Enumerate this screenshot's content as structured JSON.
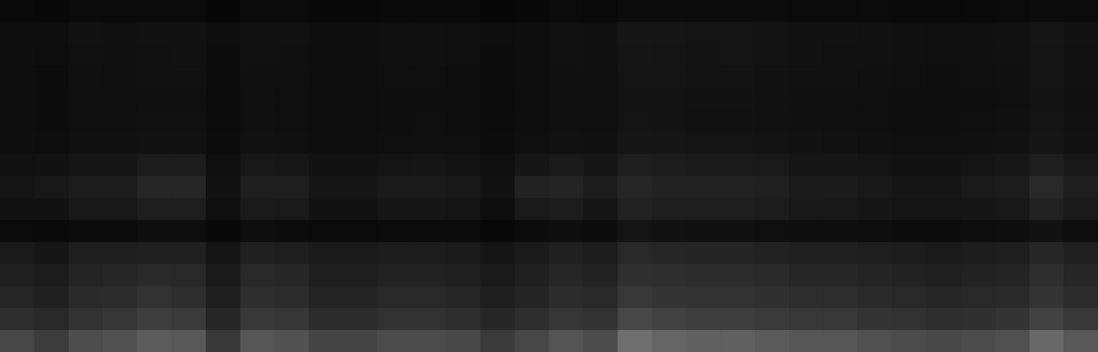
{
  "chart_data": {
    "type": "heatmap",
    "tick_labels": false,
    "zlim": [
      0,
      255
    ],
    "cells": [
      [
        9,
        8,
        10,
        10,
        10,
        10,
        7,
        10,
        10,
        8,
        8,
        9,
        9,
        9,
        7,
        8,
        10,
        9,
        12,
        12,
        11,
        11,
        11,
        10,
        10,
        10,
        9,
        9,
        9,
        10,
        12,
        10
      ],
      [
        14,
        14,
        18,
        16,
        18,
        18,
        13,
        17,
        17,
        14,
        14,
        16,
        16,
        15,
        13,
        14,
        17,
        16,
        22,
        21,
        20,
        20,
        19,
        18,
        18,
        17,
        16,
        15,
        16,
        17,
        21,
        18
      ],
      [
        14,
        13,
        17,
        16,
        17,
        18,
        12,
        17,
        16,
        14,
        14,
        16,
        16,
        15,
        12,
        14,
        17,
        16,
        21,
        20,
        19,
        20,
        19,
        18,
        17,
        17,
        16,
        15,
        16,
        17,
        20,
        17
      ],
      [
        13,
        12,
        16,
        15,
        17,
        17,
        12,
        16,
        16,
        13,
        13,
        15,
        15,
        14,
        12,
        13,
        16,
        15,
        20,
        20,
        19,
        19,
        18,
        17,
        17,
        16,
        15,
        14,
        15,
        16,
        20,
        17
      ],
      [
        13,
        12,
        15,
        15,
        16,
        16,
        11,
        16,
        15,
        13,
        13,
        14,
        14,
        14,
        11,
        13,
        16,
        15,
        19,
        19,
        18,
        18,
        17,
        16,
        16,
        15,
        14,
        14,
        14,
        15,
        19,
        16
      ],
      [
        13,
        12,
        15,
        15,
        17,
        17,
        11,
        16,
        15,
        13,
        13,
        14,
        15,
        14,
        11,
        14,
        16,
        15,
        20,
        19,
        18,
        18,
        17,
        16,
        16,
        15,
        14,
        14,
        15,
        16,
        20,
        17
      ],
      [
        14,
        13,
        16,
        16,
        18,
        18,
        12,
        17,
        16,
        14,
        14,
        15,
        15,
        15,
        12,
        15,
        17,
        16,
        22,
        21,
        20,
        20,
        19,
        18,
        17,
        16,
        15,
        15,
        16,
        17,
        22,
        18
      ],
      [
        17,
        18,
        22,
        22,
        28,
        28,
        15,
        24,
        23,
        18,
        18,
        20,
        21,
        19,
        15,
        22,
        26,
        22,
        30,
        28,
        27,
        27,
        25,
        22,
        22,
        20,
        18,
        18,
        20,
        23,
        30,
        24
      ],
      [
        20,
        24,
        28,
        28,
        38,
        38,
        18,
        30,
        30,
        22,
        22,
        26,
        26,
        24,
        18,
        34,
        36,
        28,
        38,
        34,
        34,
        34,
        32,
        26,
        27,
        24,
        22,
        22,
        25,
        28,
        40,
        30
      ],
      [
        18,
        18,
        24,
        24,
        30,
        30,
        15,
        26,
        25,
        18,
        18,
        22,
        22,
        20,
        14,
        26,
        28,
        22,
        34,
        30,
        30,
        30,
        28,
        24,
        24,
        22,
        20,
        20,
        22,
        24,
        34,
        26
      ],
      [
        10,
        9,
        12,
        12,
        14,
        14,
        8,
        13,
        12,
        10,
        10,
        11,
        11,
        11,
        8,
        12,
        14,
        12,
        20,
        18,
        16,
        16,
        15,
        14,
        14,
        13,
        12,
        12,
        13,
        14,
        18,
        14
      ],
      [
        26,
        22,
        30,
        30,
        32,
        32,
        20,
        32,
        30,
        26,
        26,
        28,
        28,
        26,
        20,
        26,
        32,
        28,
        40,
        38,
        36,
        36,
        34,
        32,
        32,
        30,
        28,
        26,
        28,
        30,
        38,
        32
      ],
      [
        32,
        28,
        36,
        38,
        42,
        40,
        26,
        40,
        38,
        30,
        30,
        34,
        34,
        32,
        26,
        32,
        38,
        34,
        48,
        46,
        44,
        44,
        42,
        38,
        38,
        36,
        34,
        32,
        34,
        36,
        46,
        38
      ],
      [
        38,
        32,
        42,
        44,
        50,
        46,
        30,
        46,
        44,
        36,
        36,
        40,
        40,
        38,
        30,
        36,
        44,
        40,
        56,
        52,
        50,
        50,
        48,
        45,
        45,
        42,
        40,
        38,
        40,
        42,
        52,
        44
      ],
      [
        46,
        40,
        50,
        54,
        62,
        58,
        38,
        56,
        54,
        44,
        44,
        50,
        50,
        46,
        38,
        46,
        54,
        50,
        72,
        66,
        62,
        62,
        58,
        55,
        55,
        52,
        50,
        46,
        48,
        52,
        66,
        56
      ],
      [
        70,
        60,
        78,
        82,
        92,
        88,
        56,
        86,
        82,
        68,
        68,
        76,
        76,
        72,
        58,
        70,
        84,
        76,
        110,
        100,
        96,
        96,
        90,
        86,
        86,
        80,
        76,
        72,
        76,
        80,
        104,
        88
      ]
    ]
  }
}
